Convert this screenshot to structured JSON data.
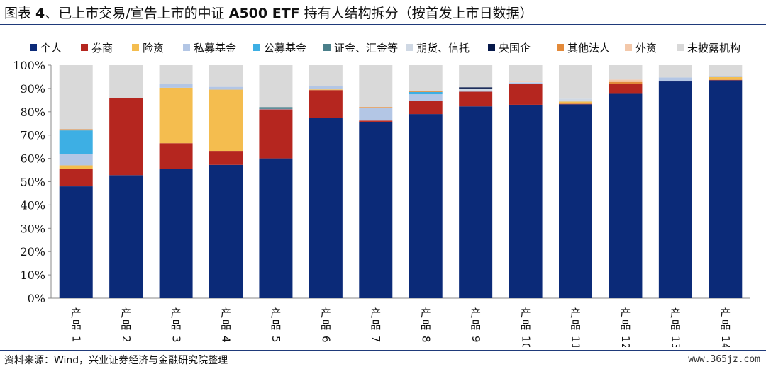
{
  "title": {
    "prefix": "图表 ",
    "number": "4",
    "text": "、已上市交易/宣告上市的中证 ",
    "fund": "A500 ETF",
    "suffix": " 持有人结构拆分（按首发上市日数据）"
  },
  "source": "资料来源：Wind，兴业证券经济与金融研究院整理",
  "watermark": "www.365jz.com",
  "chart_data": {
    "type": "bar",
    "stacked": true,
    "ylim": [
      0,
      100
    ],
    "yticks": [
      "0%",
      "10%",
      "20%",
      "30%",
      "40%",
      "50%",
      "60%",
      "70%",
      "80%",
      "90%",
      "100%"
    ],
    "categories": [
      "产品1",
      "产品2",
      "产品3",
      "产品4",
      "产品5",
      "产品6",
      "产品7",
      "产品8",
      "产品9",
      "产品10",
      "产品11",
      "产品12",
      "产品13",
      "产品14"
    ],
    "legend_position": "top",
    "series": [
      {
        "name": "个人",
        "color": "#0b2a78",
        "values": [
          48,
          52.8,
          55.5,
          57.2,
          60,
          77.5,
          75.7,
          79,
          82.3,
          83,
          83.2,
          87.7,
          93,
          93.5
        ]
      },
      {
        "name": "券商",
        "color": "#b5261f",
        "values": [
          7.5,
          33,
          11,
          6,
          21,
          11.8,
          0.5,
          5.5,
          6.3,
          9,
          0.2,
          4.3,
          0.2,
          0.2
        ]
      },
      {
        "name": "险资",
        "color": "#f4bd4f",
        "values": [
          1.5,
          0,
          23.8,
          26.3,
          0,
          0.3,
          0,
          0,
          0,
          0,
          1,
          0,
          0,
          1.2
        ]
      },
      {
        "name": "私募基金",
        "color": "#b3c6e5",
        "values": [
          5,
          0,
          1.8,
          1.2,
          0.2,
          1.3,
          5.3,
          3,
          0.4,
          0.5,
          0.2,
          0,
          1.5,
          0.5
        ]
      },
      {
        "name": "公募基金",
        "color": "#3dafe4",
        "values": [
          10,
          0,
          0,
          0,
          0,
          0,
          0,
          1,
          0,
          0,
          0,
          0,
          0,
          0
        ]
      },
      {
        "name": "证金、汇金等",
        "color": "#4a7f8a",
        "values": [
          0,
          0,
          0,
          0,
          0.8,
          0,
          0,
          0,
          0,
          0,
          0,
          0,
          0,
          0
        ]
      },
      {
        "name": "期货、信托",
        "color": "#cfd8e4",
        "values": [
          0,
          0,
          0,
          0,
          0,
          0,
          0,
          0,
          1,
          0.3,
          1,
          0,
          0,
          0
        ]
      },
      {
        "name": "央国企",
        "color": "#06184a",
        "values": [
          0,
          0,
          0,
          0,
          0,
          0,
          0,
          0,
          0.5,
          0,
          0,
          0,
          0,
          0
        ]
      },
      {
        "name": "其他法人",
        "color": "#e38a3a",
        "values": [
          0.5,
          0,
          0,
          0,
          0,
          0,
          0.5,
          0.5,
          0,
          0,
          0,
          0.8,
          0,
          0
        ]
      },
      {
        "name": "外资",
        "color": "#f3c8aa",
        "values": [
          0,
          0,
          0,
          0,
          0,
          0,
          0,
          0,
          0,
          0.4,
          0,
          1,
          0,
          0
        ]
      },
      {
        "name": "未披露机构",
        "color": "#d9d9d9",
        "values": [
          27.5,
          14.2,
          7.9,
          9.3,
          18,
          9.1,
          18,
          11,
          9.5,
          6.8,
          14.4,
          6.2,
          5.3,
          4.6
        ]
      }
    ]
  }
}
